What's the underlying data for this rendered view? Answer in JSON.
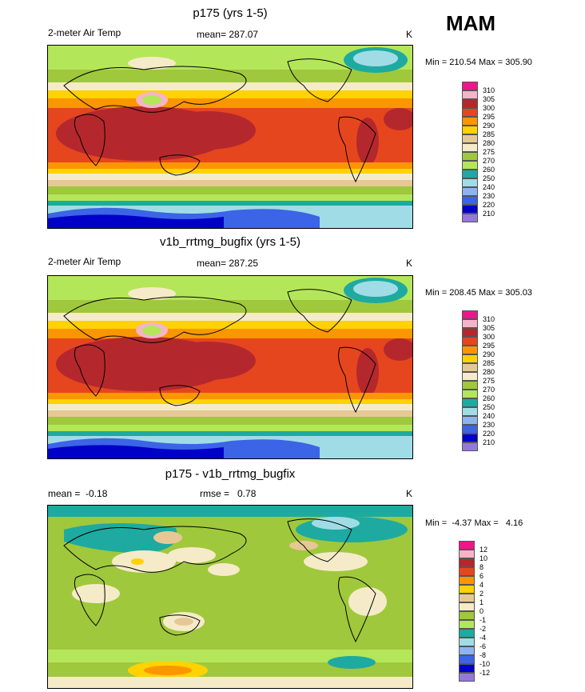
{
  "season": "MAM",
  "panels": [
    {
      "title": "p175 (yrs 1-5)",
      "left_label": "2-meter Air Temp",
      "center_label": "mean= 287.07",
      "units": "K",
      "minmax": "Min = 210.54 Max = 305.90",
      "colorbar": {
        "labels": [
          "310",
          "305",
          "300",
          "295",
          "290",
          "285",
          "280",
          "275",
          "270",
          "260",
          "250",
          "240",
          "230",
          "220",
          "210"
        ],
        "colors": [
          "#f0148c",
          "#f5b4c8",
          "#b4282d",
          "#e6461e",
          "#fa9600",
          "#ffd200",
          "#e6c896",
          "#f5ebc8",
          "#a0c83c",
          "#b4e65a",
          "#1eaaa0",
          "#a0dce6",
          "#8cb4f0",
          "#3c64e6",
          "#0000c8",
          "#9678dc"
        ]
      }
    },
    {
      "title": "v1b_rrtmg_bugfix (yrs 1-5)",
      "left_label": "2-meter Air Temp",
      "center_label": "mean= 287.25",
      "units": "K",
      "minmax": "Min = 208.45 Max = 305.03",
      "colorbar": {
        "labels": [
          "310",
          "305",
          "300",
          "295",
          "290",
          "285",
          "280",
          "275",
          "270",
          "260",
          "250",
          "240",
          "230",
          "220",
          "210"
        ],
        "colors": [
          "#f0148c",
          "#f5b4c8",
          "#b4282d",
          "#e6461e",
          "#fa9600",
          "#ffd200",
          "#e6c896",
          "#f5ebc8",
          "#a0c83c",
          "#b4e65a",
          "#1eaaa0",
          "#a0dce6",
          "#8cb4f0",
          "#3c64e6",
          "#0000c8",
          "#9678dc"
        ]
      }
    },
    {
      "title": "p175 - v1b_rrtmg_bugfix",
      "left_label": "mean =  -0.18",
      "center_label": "rmse =   0.78",
      "units": "K",
      "minmax": "Min =  -4.37 Max =   4.16",
      "colorbar": {
        "labels": [
          "12",
          "10",
          "8",
          "6",
          "4",
          "2",
          "1",
          "0",
          "-1",
          "-2",
          "-4",
          "-6",
          "-8",
          "-10",
          "-12"
        ],
        "colors": [
          "#f0148c",
          "#f5b4c8",
          "#b4282d",
          "#e6461e",
          "#fa9600",
          "#ffd200",
          "#e6c896",
          "#f5ebc8",
          "#a0c83c",
          "#b4e65a",
          "#1eaaa0",
          "#a0dce6",
          "#8cb4f0",
          "#3c64e6",
          "#0000c8",
          "#9678dc"
        ]
      }
    }
  ]
}
